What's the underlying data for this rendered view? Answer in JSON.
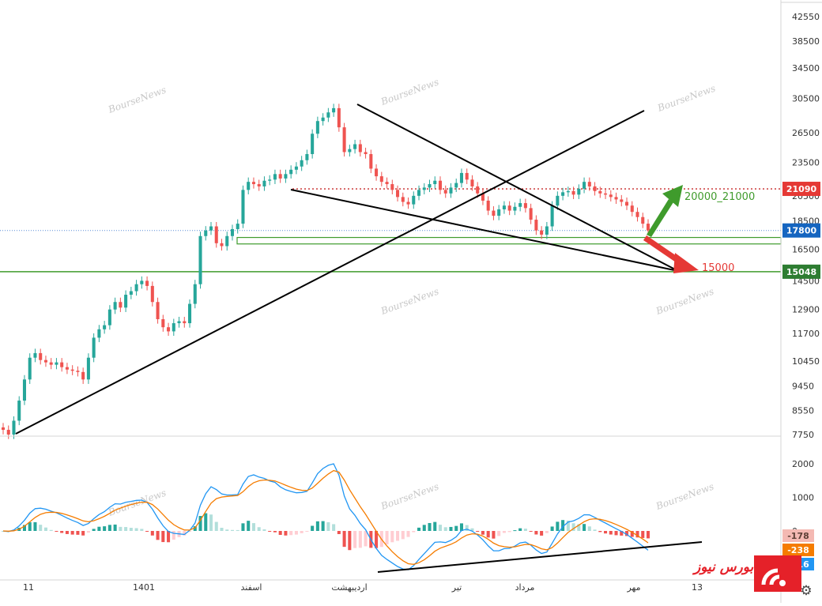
{
  "chart_data": {
    "type": "candlestick",
    "price_axis": {
      "scale": "log",
      "range": [
        7750,
        42550
      ],
      "ticks": [
        7750,
        8550,
        9450,
        10450,
        11700,
        12900,
        14500,
        16500,
        18500,
        20500,
        23500,
        26500,
        30500,
        34500,
        38500,
        42550
      ]
    },
    "time_axis": {
      "labels": [
        "11",
        "1401",
        "اسفند",
        "اردیبهشت",
        "تیر",
        "مرداد",
        "مهر",
        "13"
      ]
    },
    "price_tags": [
      {
        "value": 21090,
        "label": "21090",
        "color": "#e53935"
      },
      {
        "value": 17800,
        "label": "17800",
        "color": "#1565c0"
      },
      {
        "value": 15048,
        "label": "15048",
        "color": "#2e7d32"
      }
    ],
    "targets": [
      {
        "label": "20000_21000",
        "value": 21000,
        "direction": "up",
        "color": "#3f9b2c"
      },
      {
        "label": "15000",
        "value": 15000,
        "direction": "down",
        "color": "#e53935"
      }
    ],
    "levels": [
      {
        "value": 21090,
        "style": "dotted",
        "color": "#c62828"
      },
      {
        "value": 17800,
        "style": "dotted",
        "color": "#5c8dd6"
      },
      {
        "value": 15048,
        "style": "solid",
        "color": "#3f9b2c"
      },
      {
        "from": 16850,
        "to": 17300,
        "style": "zone",
        "color": "#3f9b2c"
      }
    ],
    "price_series": [
      7900,
      7750,
      8200,
      8900,
      9700,
      10600,
      10800,
      10500,
      10400,
      10300,
      10400,
      10200,
      10100,
      10050,
      10000,
      9700,
      10600,
      11500,
      11900,
      12100,
      12900,
      13300,
      13000,
      13700,
      13900,
      14300,
      14500,
      14200,
      13300,
      12400,
      12000,
      11800,
      12200,
      12300,
      12200,
      13200,
      14300,
      17400,
      17800,
      18100,
      16900,
      16700,
      17400,
      17900,
      18300,
      21000,
      21700,
      21500,
      21300,
      21800,
      21900,
      22400,
      22000,
      22400,
      22800,
      23100,
      23700,
      24300,
      26400,
      27800,
      28200,
      28800,
      29300,
      27100,
      24500,
      24800,
      25300,
      24500,
      24300,
      22900,
      22200,
      21700,
      21500,
      21000,
      20400,
      20000,
      19800,
      20500,
      21000,
      21200,
      21500,
      21800,
      21000,
      20700,
      21200,
      21600,
      22500,
      21900,
      21300,
      20700,
      20100,
      19300,
      18900,
      19400,
      19700,
      19300,
      19600,
      19900,
      19500,
      18600,
      17800,
      17500,
      18100,
      19700,
      20500,
      20800,
      20900,
      20600,
      21100,
      21700,
      21300,
      20900,
      20700,
      20600,
      20400,
      20200,
      20000,
      19700,
      19200,
      18800,
      18300,
      17800
    ],
    "macd": {
      "range": [
        -1100,
        2600
      ],
      "ticks": [
        2000,
        1000,
        0
      ],
      "values": [
        {
          "name": "",
          "value": -178,
          "color": "#f4b9b3"
        },
        {
          "name": "",
          "value": -238,
          "color": "#f57c00"
        },
        {
          "name": "",
          "value": -416,
          "color": "#2196f3"
        }
      ]
    }
  },
  "watermark": {
    "text": "BourseNews"
  },
  "logo": {
    "text": "بورس نیوز"
  }
}
